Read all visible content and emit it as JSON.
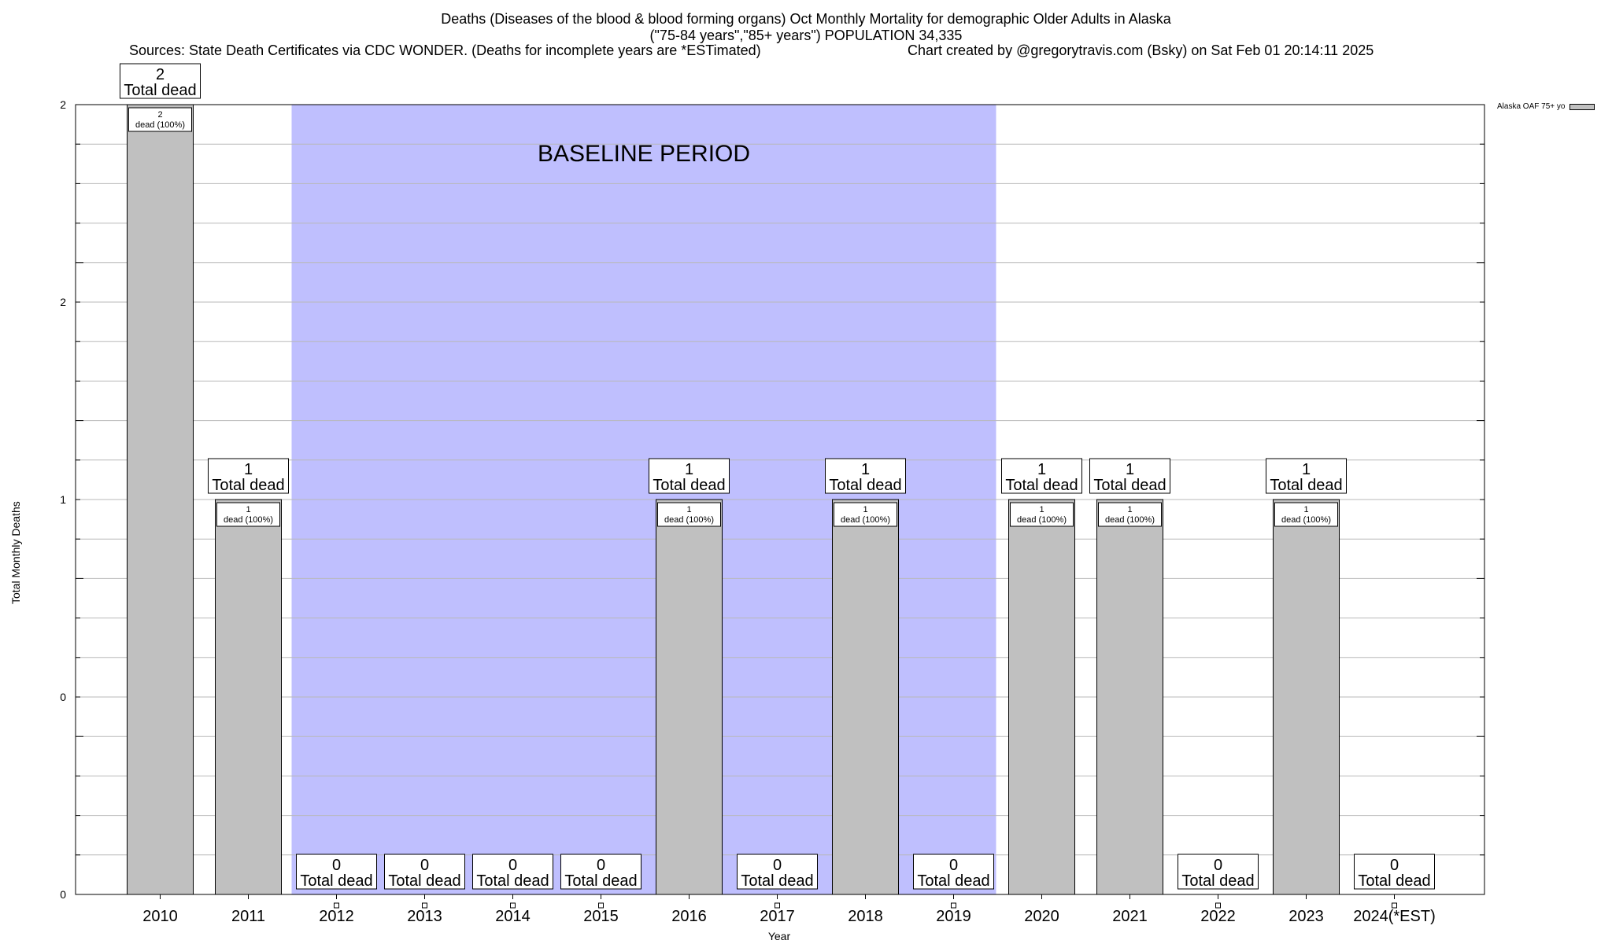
{
  "title": {
    "line1": "Deaths (Diseases of the blood & blood forming organs) Oct Monthly Mortality for demographic Older Adults in Alaska",
    "line2": "(\"75-84 years\",\"85+ years\") POPULATION 34,335",
    "sources": "Sources: State Death Certificates via CDC WONDER. (Deaths for incomplete years are *ESTimated)",
    "credit": "Chart created by @gregorytravis.com (Bsky) on Sat Feb 01 20:14:11 2025"
  },
  "baseline_label": "BASELINE PERIOD",
  "colors": {
    "bar": "#c0c0c0",
    "baseline": "#bfbffe",
    "grid": "#b8b8b8"
  },
  "chart_data": {
    "type": "bar",
    "categories": [
      "2010",
      "2011",
      "2012",
      "2013",
      "2014",
      "2015",
      "2016",
      "2017",
      "2018",
      "2019",
      "2020",
      "2021",
      "2022",
      "2023",
      "2024(*EST)"
    ],
    "series": [
      {
        "name": "Alaska OAF 75+ yo",
        "values": [
          2,
          1,
          0,
          0,
          0,
          0,
          1,
          0,
          1,
          0,
          1,
          1,
          0,
          1,
          0
        ]
      }
    ],
    "total_labels": [
      "2",
      "1",
      "0",
      "0",
      "0",
      "0",
      "1",
      "0",
      "1",
      "0",
      "1",
      "1",
      "0",
      "1",
      "0"
    ],
    "total_label_suffix": "Total dead",
    "inner_labels": [
      "2 dead (100%)",
      "1 dead (100%)",
      "",
      "",
      "",
      "",
      "1 dead (100%)",
      "",
      "1 dead (100%)",
      "",
      "1 dead (100%)",
      "1 dead (100%)",
      "",
      "1 dead (100%)",
      ""
    ],
    "baseline_range": [
      "2012",
      "2019"
    ],
    "ytick_labels": [
      "0",
      "0",
      "1",
      "2",
      "2"
    ],
    "ylim": [
      0,
      2
    ],
    "xlabel": "Year",
    "ylabel": "Total Monthly Deaths",
    "legend_position": "top-right",
    "grid": true
  }
}
